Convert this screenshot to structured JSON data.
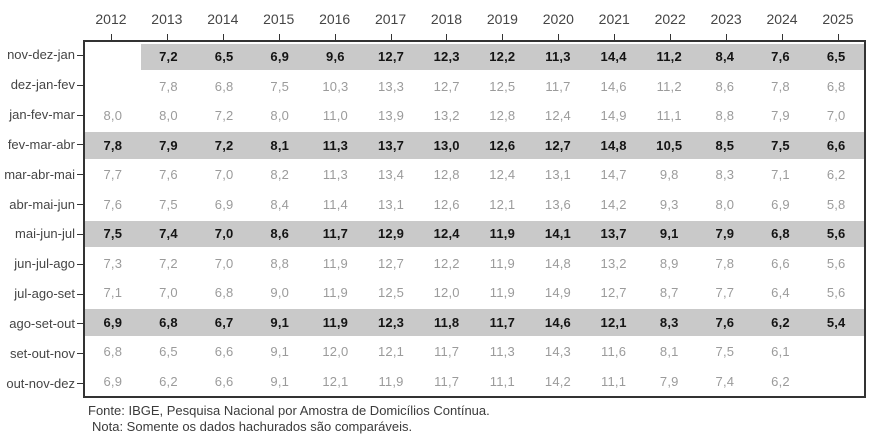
{
  "table": {
    "columns": [
      "2012",
      "2013",
      "2014",
      "2015",
      "2016",
      "2017",
      "2018",
      "2019",
      "2020",
      "2021",
      "2022",
      "2023",
      "2024",
      "2025"
    ],
    "rows": [
      {
        "label": "nov-dez-jan",
        "highlighted": true,
        "values": [
          "",
          "7,2",
          "6,5",
          "6,9",
          "9,6",
          "12,7",
          "12,3",
          "12,2",
          "11,3",
          "14,4",
          "11,2",
          "8,4",
          "7,6",
          "6,5"
        ]
      },
      {
        "label": "dez-jan-fev",
        "highlighted": false,
        "values": [
          "",
          "7,8",
          "6,8",
          "7,5",
          "10,3",
          "13,3",
          "12,7",
          "12,5",
          "11,7",
          "14,6",
          "11,2",
          "8,6",
          "7,8",
          "6,8"
        ]
      },
      {
        "label": "jan-fev-mar",
        "highlighted": false,
        "values": [
          "8,0",
          "8,0",
          "7,2",
          "8,0",
          "11,0",
          "13,9",
          "13,2",
          "12,8",
          "12,4",
          "14,9",
          "11,1",
          "8,8",
          "7,9",
          "7,0"
        ]
      },
      {
        "label": "fev-mar-abr",
        "highlighted": true,
        "values": [
          "7,8",
          "7,9",
          "7,2",
          "8,1",
          "11,3",
          "13,7",
          "13,0",
          "12,6",
          "12,7",
          "14,8",
          "10,5",
          "8,5",
          "7,5",
          "6,6"
        ]
      },
      {
        "label": "mar-abr-mai",
        "highlighted": false,
        "values": [
          "7,7",
          "7,6",
          "7,0",
          "8,2",
          "11,3",
          "13,4",
          "12,8",
          "12,4",
          "13,1",
          "14,7",
          "9,8",
          "8,3",
          "7,1",
          "6,2"
        ]
      },
      {
        "label": "abr-mai-jun",
        "highlighted": false,
        "values": [
          "7,6",
          "7,5",
          "6,9",
          "8,4",
          "11,4",
          "13,1",
          "12,6",
          "12,1",
          "13,6",
          "14,2",
          "9,3",
          "8,0",
          "6,9",
          "5,8"
        ]
      },
      {
        "label": "mai-jun-jul",
        "highlighted": true,
        "values": [
          "7,5",
          "7,4",
          "7,0",
          "8,6",
          "11,7",
          "12,9",
          "12,4",
          "11,9",
          "14,1",
          "13,7",
          "9,1",
          "7,9",
          "6,8",
          "5,6"
        ]
      },
      {
        "label": "jun-jul-ago",
        "highlighted": false,
        "values": [
          "7,3",
          "7,2",
          "7,0",
          "8,8",
          "11,9",
          "12,7",
          "12,2",
          "11,9",
          "14,8",
          "13,2",
          "8,9",
          "7,8",
          "6,6",
          "5,6"
        ]
      },
      {
        "label": "jul-ago-set",
        "highlighted": false,
        "values": [
          "7,1",
          "7,0",
          "6,8",
          "9,0",
          "11,9",
          "12,5",
          "12,0",
          "11,9",
          "14,9",
          "12,7",
          "8,7",
          "7,7",
          "6,4",
          "5,6"
        ]
      },
      {
        "label": "ago-set-out",
        "highlighted": true,
        "values": [
          "6,9",
          "6,8",
          "6,7",
          "9,1",
          "11,9",
          "12,3",
          "11,8",
          "11,7",
          "14,6",
          "12,1",
          "8,3",
          "7,6",
          "6,2",
          "5,4"
        ]
      },
      {
        "label": "set-out-nov",
        "highlighted": false,
        "values": [
          "6,8",
          "6,5",
          "6,6",
          "9,1",
          "12,0",
          "12,1",
          "11,7",
          "11,3",
          "14,3",
          "11,6",
          "8,1",
          "7,5",
          "6,1",
          ""
        ]
      },
      {
        "label": "out-nov-dez",
        "highlighted": false,
        "values": [
          "6,9",
          "6,2",
          "6,6",
          "9,1",
          "12,1",
          "11,9",
          "11,7",
          "11,1",
          "14,2",
          "11,1",
          "7,9",
          "7,4",
          "6,2",
          ""
        ]
      }
    ]
  },
  "footer": {
    "source": "Fonte: IBGE, Pesquisa Nacional por Amostra de Domicílios Contínua.",
    "note": "Nota: Somente os dados hachurados são comparáveis."
  },
  "colors": {
    "highlight_band": "#c9c9c9",
    "normal_value_text": "#9b9b9b",
    "highlight_value_text": "#141414",
    "axis_label_text": "#454545",
    "panel_border": "#333333"
  },
  "chart_data": {
    "type": "table",
    "title": "",
    "xlabel": "",
    "ylabel": "",
    "categories": [
      "2012",
      "2013",
      "2014",
      "2015",
      "2016",
      "2017",
      "2018",
      "2019",
      "2020",
      "2021",
      "2022",
      "2023",
      "2024",
      "2025"
    ],
    "series": [
      {
        "name": "nov-dez-jan",
        "highlighted": true,
        "values": [
          null,
          7.2,
          6.5,
          6.9,
          9.6,
          12.7,
          12.3,
          12.2,
          11.3,
          14.4,
          11.2,
          8.4,
          7.6,
          6.5
        ]
      },
      {
        "name": "dez-jan-fev",
        "highlighted": false,
        "values": [
          null,
          7.8,
          6.8,
          7.5,
          10.3,
          13.3,
          12.7,
          12.5,
          11.7,
          14.6,
          11.2,
          8.6,
          7.8,
          6.8
        ]
      },
      {
        "name": "jan-fev-mar",
        "highlighted": false,
        "values": [
          8.0,
          8.0,
          7.2,
          8.0,
          11.0,
          13.9,
          13.2,
          12.8,
          12.4,
          14.9,
          11.1,
          8.8,
          7.9,
          7.0
        ]
      },
      {
        "name": "fev-mar-abr",
        "highlighted": true,
        "values": [
          7.8,
          7.9,
          7.2,
          8.1,
          11.3,
          13.7,
          13.0,
          12.6,
          12.7,
          14.8,
          10.5,
          8.5,
          7.5,
          6.6
        ]
      },
      {
        "name": "mar-abr-mai",
        "highlighted": false,
        "values": [
          7.7,
          7.6,
          7.0,
          8.2,
          11.3,
          13.4,
          12.8,
          12.4,
          13.1,
          14.7,
          9.8,
          8.3,
          7.1,
          6.2
        ]
      },
      {
        "name": "abr-mai-jun",
        "highlighted": false,
        "values": [
          7.6,
          7.5,
          6.9,
          8.4,
          11.4,
          13.1,
          12.6,
          12.1,
          13.6,
          14.2,
          9.3,
          8.0,
          6.9,
          5.8
        ]
      },
      {
        "name": "mai-jun-jul",
        "highlighted": true,
        "values": [
          7.5,
          7.4,
          7.0,
          8.6,
          11.7,
          12.9,
          12.4,
          11.9,
          14.1,
          13.7,
          9.1,
          7.9,
          6.8,
          5.6
        ]
      },
      {
        "name": "jun-jul-ago",
        "highlighted": false,
        "values": [
          7.3,
          7.2,
          7.0,
          8.8,
          11.9,
          12.7,
          12.2,
          11.9,
          14.8,
          13.2,
          8.9,
          7.8,
          6.6,
          5.6
        ]
      },
      {
        "name": "jul-ago-set",
        "highlighted": false,
        "values": [
          7.1,
          7.0,
          6.8,
          9.0,
          11.9,
          12.5,
          12.0,
          11.9,
          14.9,
          12.7,
          8.7,
          7.7,
          6.4,
          5.6
        ]
      },
      {
        "name": "ago-set-out",
        "highlighted": true,
        "values": [
          6.9,
          6.8,
          6.7,
          9.1,
          11.9,
          12.3,
          11.8,
          11.7,
          14.6,
          12.1,
          8.3,
          7.6,
          6.2,
          5.4
        ]
      },
      {
        "name": "set-out-nov",
        "highlighted": false,
        "values": [
          6.8,
          6.5,
          6.6,
          9.1,
          12.0,
          12.1,
          11.7,
          11.3,
          14.3,
          11.6,
          8.1,
          7.5,
          6.1,
          null
        ]
      },
      {
        "name": "out-nov-dez",
        "highlighted": false,
        "values": [
          6.9,
          6.2,
          6.6,
          9.1,
          12.1,
          11.9,
          11.7,
          11.1,
          14.2,
          11.1,
          7.9,
          7.4,
          6.2,
          null
        ]
      }
    ],
    "grid": false,
    "legend": "none"
  }
}
